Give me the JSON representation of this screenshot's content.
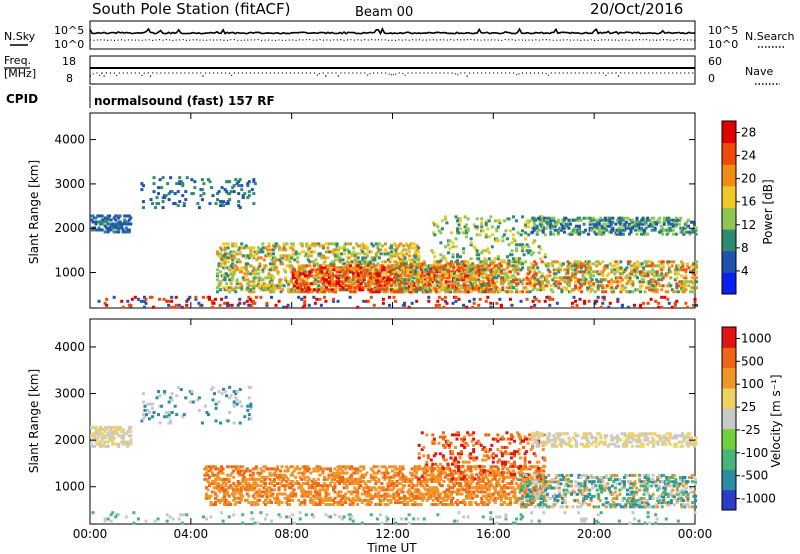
{
  "header": {
    "station": "South Pole Station (fitACF)",
    "beam": "Beam 00",
    "date": "20/Oct/2016"
  },
  "panels": {
    "nsky_label": "N.Sky",
    "nsky_tick_top": "10^5",
    "nsky_tick_bottom": "10^0",
    "nsearch_label": "N.Search",
    "nsearch_tick_top": "10^5",
    "nsearch_tick_bottom": "10^0",
    "freq_label_1": "Freq.",
    "freq_label_2": "[MHz]",
    "freq_tick_top": "18",
    "freq_tick_bottom": "8",
    "nave_label": "Nave",
    "nave_tick_top": "60",
    "nave_tick_bottom": "0",
    "cpid_label": "CPID",
    "cpid_text": "normalsound (fast) 157 RF"
  },
  "chart_data": [
    {
      "type": "heatmap",
      "name": "power",
      "ylabel": "Slant Range [km]",
      "yticks": [
        1000,
        2000,
        3000,
        4000
      ],
      "ylim": [
        200,
        4600
      ],
      "xlim_hours": [
        0,
        24
      ],
      "colorbar_label": "Power [dB]",
      "colorbar_ticks": [
        "4",
        "8",
        "12",
        "16",
        "20",
        "24",
        "28"
      ],
      "colorbar_colors": [
        "#0a1ef0",
        "#2050b0",
        "#2e8a70",
        "#8cc850",
        "#f0c828",
        "#f08c14",
        "#f04a0a",
        "#e00000"
      ],
      "colorbar_range": [
        0,
        30
      ]
    },
    {
      "type": "heatmap",
      "name": "velocity",
      "ylabel": "Slant Range [km]",
      "yticks": [
        1000,
        2000,
        3000,
        4000
      ],
      "ylim": [
        200,
        4600
      ],
      "xlim_hours": [
        0,
        24
      ],
      "colorbar_label": "Velocity [m s⁻¹]",
      "colorbar_ticks": [
        "1000",
        "500",
        "100",
        "25",
        "-25",
        "-100",
        "-500",
        "-1000"
      ],
      "colorbar_colors": [
        "#2a3cc8",
        "#2a8ca0",
        "#48b478",
        "#6ed23c",
        "#c8c8c8",
        "#f0d264",
        "#f09628",
        "#f06414",
        "#e01414"
      ]
    }
  ],
  "xaxis": {
    "label": "Time UT",
    "ticks": [
      "00:00",
      "04:00",
      "08:00",
      "12:00",
      "16:00",
      "20:00",
      "00:00"
    ]
  }
}
